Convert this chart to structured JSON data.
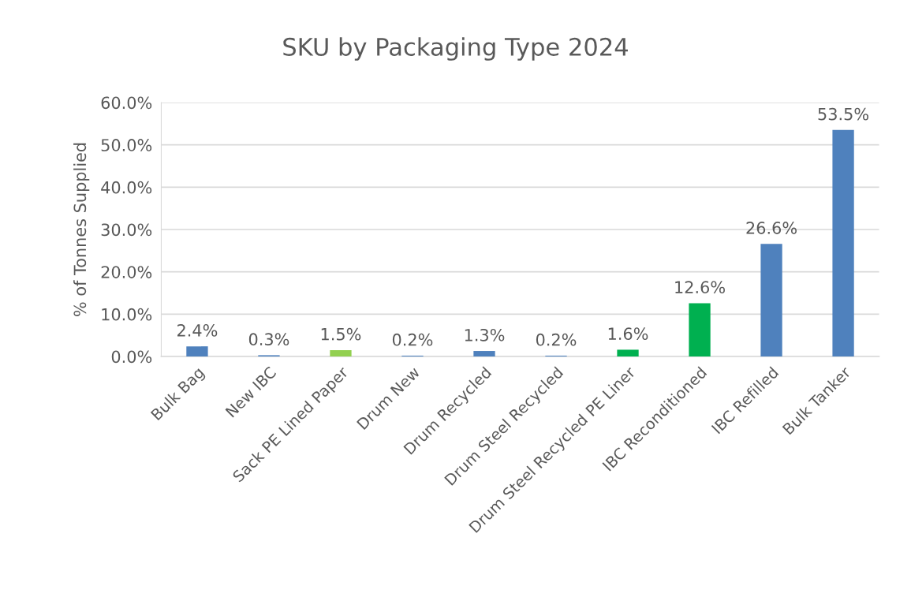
{
  "chart_data": {
    "type": "bar",
    "title": "SKU by Packaging Type 2024",
    "ylabel": "% of Tonnes Supplied",
    "categories": [
      "Bulk Bag",
      "New IBC",
      "Sack PE Lined Paper",
      "Drum New",
      "Drum Recycled",
      "Drum Steel Recycled",
      "Drum Steel Recycled PE Liner",
      "IBC Reconditioned",
      "IBC Refilled",
      "Bulk Tanker"
    ],
    "values": [
      2.4,
      0.3,
      1.5,
      0.2,
      1.3,
      0.2,
      1.6,
      12.6,
      26.6,
      53.5
    ],
    "value_labels": [
      "2.4%",
      "0.3%",
      "1.5%",
      "0.2%",
      "1.3%",
      "0.2%",
      "1.6%",
      "12.6%",
      "26.6%",
      "53.5%"
    ],
    "colors": [
      "#4f81bd",
      "#4f81bd",
      "#92d050",
      "#4f81bd",
      "#4f81bd",
      "#4f81bd",
      "#00b050",
      "#00b050",
      "#4f81bd",
      "#4f81bd"
    ],
    "ylim": [
      0,
      60
    ],
    "yticks": [
      {
        "value": 0,
        "label": "0.0%"
      },
      {
        "value": 10,
        "label": "10.0%"
      },
      {
        "value": 20,
        "label": "20.0%"
      },
      {
        "value": 30,
        "label": "30.0%"
      },
      {
        "value": 40,
        "label": "40.0%"
      },
      {
        "value": 50,
        "label": "50.0%"
      },
      {
        "value": 60,
        "label": "60.0%"
      }
    ],
    "grid": "y",
    "legend": false
  }
}
